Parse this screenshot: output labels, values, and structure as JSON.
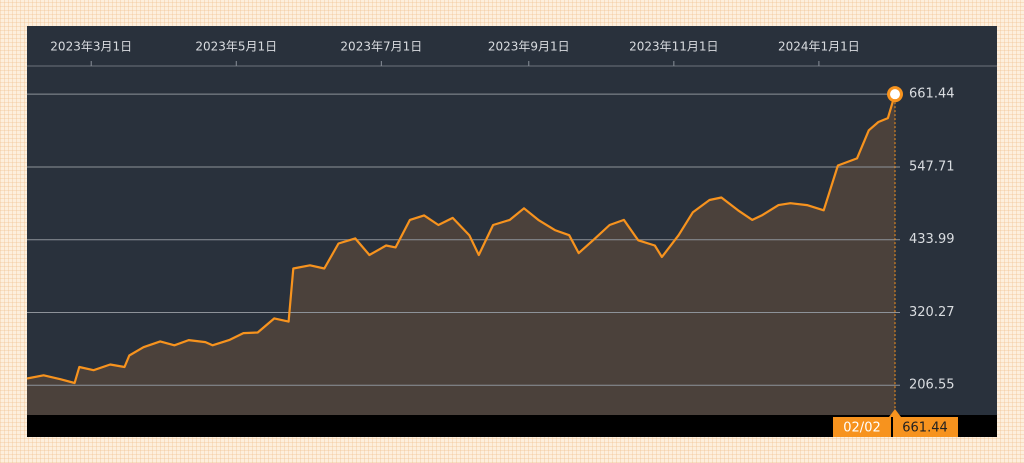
{
  "chart_data": {
    "type": "line",
    "x": [
      "2023-02-02",
      "2023-02-09",
      "2023-02-16",
      "2023-02-22",
      "2023-02-24",
      "2023-03-02",
      "2023-03-09",
      "2023-03-15",
      "2023-03-17",
      "2023-03-23",
      "2023-03-30",
      "2023-04-05",
      "2023-04-11",
      "2023-04-18",
      "2023-04-21",
      "2023-04-28",
      "2023-05-04",
      "2023-05-10",
      "2023-05-17",
      "2023-05-23",
      "2023-05-25",
      "2023-06-01",
      "2023-06-07",
      "2023-06-13",
      "2023-06-20",
      "2023-06-26",
      "2023-07-03",
      "2023-07-07",
      "2023-07-13",
      "2023-07-19",
      "2023-07-25",
      "2023-07-31",
      "2023-08-07",
      "2023-08-11",
      "2023-08-17",
      "2023-08-24",
      "2023-08-30",
      "2023-09-05",
      "2023-09-12",
      "2023-09-18",
      "2023-09-22",
      "2023-09-28",
      "2023-10-05",
      "2023-10-11",
      "2023-10-17",
      "2023-10-24",
      "2023-10-27",
      "2023-11-03",
      "2023-11-09",
      "2023-11-16",
      "2023-11-21",
      "2023-11-28",
      "2023-12-04",
      "2023-12-08",
      "2023-12-15",
      "2023-12-20",
      "2023-12-27",
      "2024-01-03",
      "2024-01-09",
      "2024-01-17",
      "2024-01-22",
      "2024-01-26",
      "2024-01-30",
      "2024-02-02"
    ],
    "series": [
      {
        "color": "#f7931e",
        "fill_color": "#4b413b",
        "values": [
          217,
          222,
          216,
          210,
          235,
          230,
          239,
          235,
          253,
          266,
          275,
          269,
          277,
          274,
          269,
          277,
          288,
          289,
          311,
          306,
          389,
          394,
          389,
          428,
          436,
          410,
          425,
          422,
          465,
          472,
          457,
          468,
          441,
          410,
          457,
          465,
          483,
          465,
          449,
          441,
          413,
          433,
          457,
          465,
          433,
          425,
          407,
          441,
          477,
          496,
          500,
          480,
          465,
          472,
          488,
          491,
          488,
          480,
          550,
          561,
          605,
          618,
          624,
          661.44
        ]
      }
    ],
    "xlim": [
      "2023-02-02",
      "2024-02-02"
    ],
    "xticks": [
      {
        "value": "2023-03-01",
        "label": "2023年3月1日"
      },
      {
        "value": "2023-05-01",
        "label": "2023年5月1日"
      },
      {
        "value": "2023-07-01",
        "label": "2023年7月1日"
      },
      {
        "value": "2023-09-01",
        "label": "2023年9月1日"
      },
      {
        "value": "2023-11-01",
        "label": "2023年11月1日"
      },
      {
        "value": "2024-01-01",
        "label": "2024年1月1日"
      }
    ],
    "ylim": [
      160,
      768
    ],
    "yticks": [
      206.55,
      320.27,
      433.99,
      547.71,
      661.44
    ],
    "grid": true,
    "cursor_date_label": "02/02"
  }
}
